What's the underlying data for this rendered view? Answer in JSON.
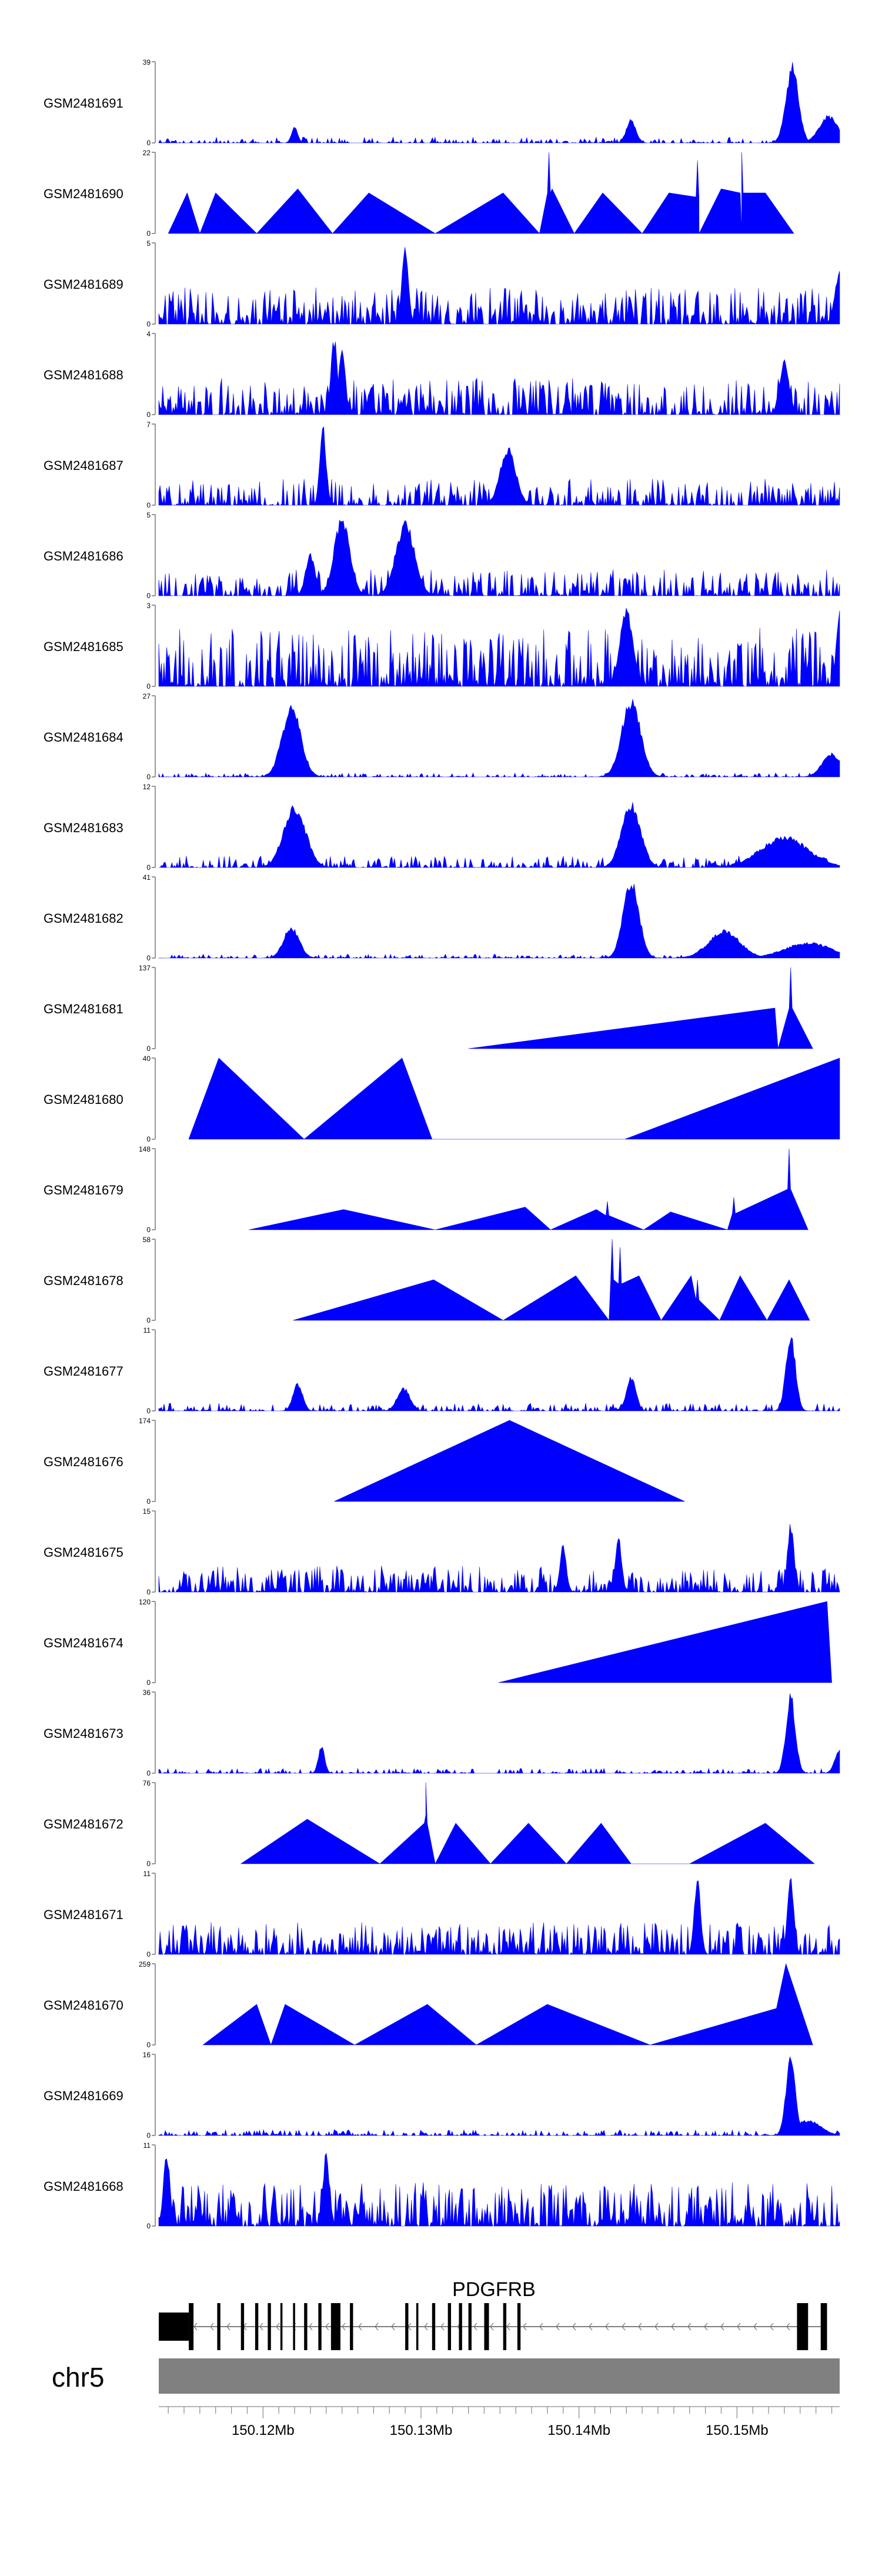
{
  "chart_data": {
    "type": "area",
    "title": "",
    "x_unit": "Mb",
    "x_range": [
      150.1134,
      150.1565
    ],
    "x_ticks": [
      150.12,
      150.13,
      150.14,
      150.15
    ],
    "x_tick_labels": [
      "150.12Mb",
      "150.13Mb",
      "150.14Mb",
      "150.15Mb"
    ],
    "colors": {
      "fill": "#0000ff",
      "gene": "#000000",
      "ideogram": "#808080",
      "axis": "#000000"
    },
    "tracks": [
      {
        "name": "GSM2481691",
        "ymax": 39,
        "kind": "dense",
        "seed": 11,
        "base": 0.06,
        "density": 0.55,
        "peaks": [
          [
            150.1535,
            1.0,
            0.0004
          ],
          [
            150.1433,
            0.3,
            0.0003
          ],
          [
            150.122,
            0.2,
            0.0002
          ],
          [
            150.1558,
            0.35,
            0.0006
          ]
        ]
      },
      {
        "name": "GSM2481690",
        "ymax": 22,
        "kind": "tri",
        "seed": 12,
        "base": 0.0,
        "density": 0.0,
        "peaks": [
          [
            150.1381,
            1.0,
            0.0002
          ],
          [
            150.1503,
            1.0,
            0.0002
          ],
          [
            150.1475,
            0.9,
            0.0002
          ]
        ],
        "tri_x": [
          150.114,
          150.1152,
          150.116,
          150.117,
          150.1196,
          150.1222,
          150.1244,
          150.1267,
          150.1309,
          150.1352,
          150.1375,
          150.1383,
          150.1397,
          150.1415,
          150.144,
          150.1457,
          150.1476,
          150.149,
          150.1503,
          150.1518,
          150.1536
        ],
        "tri_y": [
          0,
          0.5,
          0,
          0.5,
          0,
          0.55,
          0,
          0.5,
          0,
          0.5,
          0,
          0.55,
          0,
          0.5,
          0,
          0.5,
          0,
          0.55,
          0,
          0.5,
          0
        ]
      },
      {
        "name": "GSM2481689",
        "ymax": 5,
        "kind": "spiky",
        "seed": 13,
        "base": 0.25,
        "density": 0.75,
        "peaks": [
          [
            150.129,
            1.0,
            0.0002
          ],
          [
            150.1565,
            0.7,
            0.0003
          ]
        ]
      },
      {
        "name": "GSM2481688",
        "ymax": 4,
        "kind": "spiky",
        "seed": 14,
        "base": 0.25,
        "density": 0.75,
        "peaks": [
          [
            150.1245,
            1.0,
            0.0002
          ],
          [
            150.125,
            0.9,
            0.0002
          ],
          [
            150.153,
            0.7,
            0.0003
          ]
        ]
      },
      {
        "name": "GSM2481687",
        "ymax": 7,
        "kind": "spiky",
        "seed": 15,
        "base": 0.18,
        "density": 0.7,
        "peaks": [
          [
            150.1238,
            1.0,
            0.0002
          ],
          [
            150.1355,
            0.75,
            0.0005
          ]
        ]
      },
      {
        "name": "GSM2481686",
        "ymax": 5,
        "kind": "spiky",
        "seed": 16,
        "base": 0.18,
        "density": 0.7,
        "peaks": [
          [
            150.125,
            1.0,
            0.0005
          ],
          [
            150.129,
            0.95,
            0.0006
          ],
          [
            150.123,
            0.55,
            0.0003
          ]
        ]
      },
      {
        "name": "GSM2481685",
        "ymax": 3,
        "kind": "spiky",
        "seed": 17,
        "base": 0.4,
        "density": 0.8,
        "peaks": [
          [
            150.143,
            1.0,
            0.0004
          ],
          [
            150.1565,
            1.0,
            0.0002
          ]
        ]
      },
      {
        "name": "GSM2481684",
        "ymax": 27,
        "kind": "dense",
        "seed": 18,
        "base": 0.04,
        "density": 0.6,
        "peaks": [
          [
            150.1218,
            0.9,
            0.0006
          ],
          [
            150.1433,
            1.0,
            0.0006
          ],
          [
            150.156,
            0.3,
            0.0006
          ]
        ]
      },
      {
        "name": "GSM2481683",
        "ymax": 12,
        "kind": "dense",
        "seed": 19,
        "base": 0.12,
        "density": 0.7,
        "peaks": [
          [
            150.122,
            0.8,
            0.0007
          ],
          [
            150.1433,
            0.85,
            0.0006
          ],
          [
            150.153,
            0.4,
            0.0015
          ]
        ]
      },
      {
        "name": "GSM2481682",
        "ymax": 41,
        "kind": "dense",
        "seed": 20,
        "base": 0.04,
        "density": 0.6,
        "peaks": [
          [
            150.1218,
            0.4,
            0.0005
          ],
          [
            150.1433,
            1.0,
            0.0005
          ],
          [
            150.1492,
            0.35,
            0.001
          ],
          [
            150.1545,
            0.2,
            0.0015
          ]
        ]
      },
      {
        "name": "GSM2481681",
        "ymax": 137,
        "kind": "tri",
        "seed": 21,
        "base": 0.0,
        "density": 0.0,
        "peaks": [
          [
            150.1534,
            1.0,
            0.0001
          ]
        ],
        "tri_x": [
          150.133,
          150.1524,
          150.1526,
          150.1534,
          150.1548
        ],
        "tri_y": [
          0,
          0.5,
          0,
          1.0,
          0
        ]
      },
      {
        "name": "GSM2481680",
        "ymax": 40,
        "kind": "tri",
        "seed": 22,
        "base": 0.0,
        "density": 0.0,
        "peaks": [],
        "tri_x": [
          150.1153,
          150.1172,
          150.1226,
          150.1288,
          150.1307,
          150.1429,
          150.1565
        ],
        "tri_y": [
          0,
          1.0,
          0,
          1.0,
          0,
          0,
          1.0
        ]
      },
      {
        "name": "GSM2481679",
        "ymax": 148,
        "kind": "tri",
        "seed": 23,
        "base": 0.0,
        "density": 0.0,
        "peaks": [
          [
            150.1533,
            1.0,
            0.0002
          ],
          [
            150.1498,
            0.4,
            0.0002
          ],
          [
            150.1418,
            0.35,
            0.0002
          ]
        ],
        "tri_x": [
          150.1191,
          150.1251,
          150.1309,
          150.1366,
          150.1382,
          150.1411,
          150.1441,
          150.1458,
          150.1494,
          150.1534,
          150.1545
        ],
        "tri_y": [
          0,
          0.25,
          0,
          0.28,
          0,
          0.25,
          0,
          0.22,
          0,
          0.5,
          0
        ]
      },
      {
        "name": "GSM2481678",
        "ymax": 58,
        "kind": "tri",
        "seed": 24,
        "base": 0.0,
        "density": 0.0,
        "peaks": [
          [
            150.1421,
            1.0,
            0.0002
          ],
          [
            150.1426,
            0.9,
            0.0002
          ],
          [
            150.1475,
            0.5,
            0.0002
          ]
        ],
        "tri_x": [
          150.1219,
          150.1308,
          150.1352,
          150.1398,
          150.1419,
          150.1438,
          150.1452,
          150.1471,
          150.1489,
          150.1502,
          150.1519,
          150.1533,
          150.1546
        ],
        "tri_y": [
          0,
          0.5,
          0,
          0.55,
          0,
          0.55,
          0,
          0.55,
          0,
          0.55,
          0,
          0.5,
          0
        ]
      },
      {
        "name": "GSM2481677",
        "ymax": 11,
        "kind": "dense",
        "seed": 25,
        "base": 0.08,
        "density": 0.6,
        "peaks": [
          [
            150.1534,
            1.0,
            0.0003
          ],
          [
            150.1433,
            0.45,
            0.0003
          ],
          [
            150.1222,
            0.35,
            0.0003
          ],
          [
            150.1289,
            0.3,
            0.0004
          ]
        ]
      },
      {
        "name": "GSM2481676",
        "ymax": 174,
        "kind": "tri",
        "seed": 26,
        "base": 0.0,
        "density": 0.0,
        "peaks": [],
        "tri_x": [
          150.1245,
          150.1356,
          150.1467
        ],
        "tri_y": [
          0,
          1.0,
          0
        ]
      },
      {
        "name": "GSM2481675",
        "ymax": 15,
        "kind": "spiky",
        "seed": 27,
        "base": 0.18,
        "density": 0.7,
        "peaks": [
          [
            150.1534,
            0.9,
            0.0002
          ],
          [
            150.1425,
            0.7,
            0.0002
          ],
          [
            150.139,
            0.6,
            0.0002
          ]
        ]
      },
      {
        "name": "GSM2481674",
        "ymax": 120,
        "kind": "tri",
        "seed": 28,
        "base": 0.0,
        "density": 0.0,
        "peaks": [],
        "tri_x": [
          150.1349,
          150.1557,
          150.156
        ],
        "tri_y": [
          0,
          1.0,
          0
        ]
      },
      {
        "name": "GSM2481673",
        "ymax": 36,
        "kind": "dense",
        "seed": 29,
        "base": 0.05,
        "density": 0.55,
        "peaks": [
          [
            150.1534,
            1.0,
            0.0003
          ],
          [
            150.1237,
            0.35,
            0.0002
          ],
          [
            150.1565,
            0.3,
            0.0003
          ]
        ]
      },
      {
        "name": "GSM2481672",
        "ymax": 76,
        "kind": "tri",
        "seed": 30,
        "base": 0.0,
        "density": 0.0,
        "peaks": [
          [
            150.1303,
            1.0,
            0.0002
          ]
        ],
        "tri_x": [
          150.1186,
          150.1228,
          150.1274,
          150.1303,
          150.1309,
          150.1322,
          150.1344,
          150.1368,
          150.1392,
          150.1414,
          150.1433,
          150.147,
          150.1518,
          150.1549
        ],
        "tri_y": [
          0,
          0.55,
          0,
          0.6,
          0,
          0.5,
          0,
          0.5,
          0,
          0.5,
          0,
          0,
          0.5,
          0
        ]
      },
      {
        "name": "GSM2481671",
        "ymax": 11,
        "kind": "spiky",
        "seed": 31,
        "base": 0.22,
        "density": 0.8,
        "peaks": [
          [
            150.1475,
            1.0,
            0.0002
          ],
          [
            150.1534,
            1.0,
            0.0002
          ]
        ]
      },
      {
        "name": "GSM2481670",
        "ymax": 259,
        "kind": "tri",
        "seed": 32,
        "base": 0.0,
        "density": 0.0,
        "peaks": [],
        "tri_x": [
          150.1162,
          150.1196,
          150.1205,
          150.1214,
          150.1258,
          150.1304,
          150.1335,
          150.138,
          150.1445,
          150.1525,
          150.1531,
          150.1548
        ],
        "tri_y": [
          0,
          0.5,
          0,
          0.5,
          0,
          0.5,
          0,
          0.5,
          0,
          0.45,
          1.0,
          0
        ]
      },
      {
        "name": "GSM2481669",
        "ymax": 16,
        "kind": "dense",
        "seed": 33,
        "base": 0.06,
        "density": 0.6,
        "peaks": [
          [
            150.1534,
            1.0,
            0.0003
          ],
          [
            150.1545,
            0.2,
            0.0008
          ]
        ]
      },
      {
        "name": "GSM2481668",
        "ymax": 11,
        "kind": "spiky",
        "seed": 34,
        "base": 0.3,
        "density": 0.8,
        "peaks": [
          [
            150.1139,
            0.95,
            0.0002
          ],
          [
            150.124,
            0.95,
            0.0002
          ]
        ]
      }
    ],
    "gene": {
      "name": "PDGFRB",
      "chromosome": "chr5",
      "start": 150.1134,
      "end": 150.1557,
      "utr_blocks": [
        [
          150.1134,
          150.1153
        ]
      ],
      "exon_blocks": [
        [
          150.1153,
          150.1156
        ],
        [
          150.1171,
          150.1173
        ],
        [
          150.1186,
          150.1188
        ],
        [
          150.1195,
          150.1197
        ],
        [
          150.1203,
          150.1205
        ],
        [
          150.1211,
          150.1212
        ],
        [
          150.1219,
          150.122
        ],
        [
          150.1226,
          150.1228
        ],
        [
          150.1235,
          150.1237
        ],
        [
          150.1243,
          150.1249
        ],
        [
          150.1255,
          150.1257
        ],
        [
          150.129,
          150.1292
        ],
        [
          150.1297,
          150.1298
        ],
        [
          150.1307,
          150.1309
        ],
        [
          150.1317,
          150.1319
        ],
        [
          150.1324,
          150.1326
        ],
        [
          150.133,
          150.1332
        ],
        [
          150.134,
          150.1343
        ],
        [
          150.1352,
          150.1354
        ],
        [
          150.1361,
          150.1363
        ],
        [
          150.1538,
          150.1545
        ],
        [
          150.1553,
          150.1557
        ]
      ],
      "strand": "-"
    }
  }
}
